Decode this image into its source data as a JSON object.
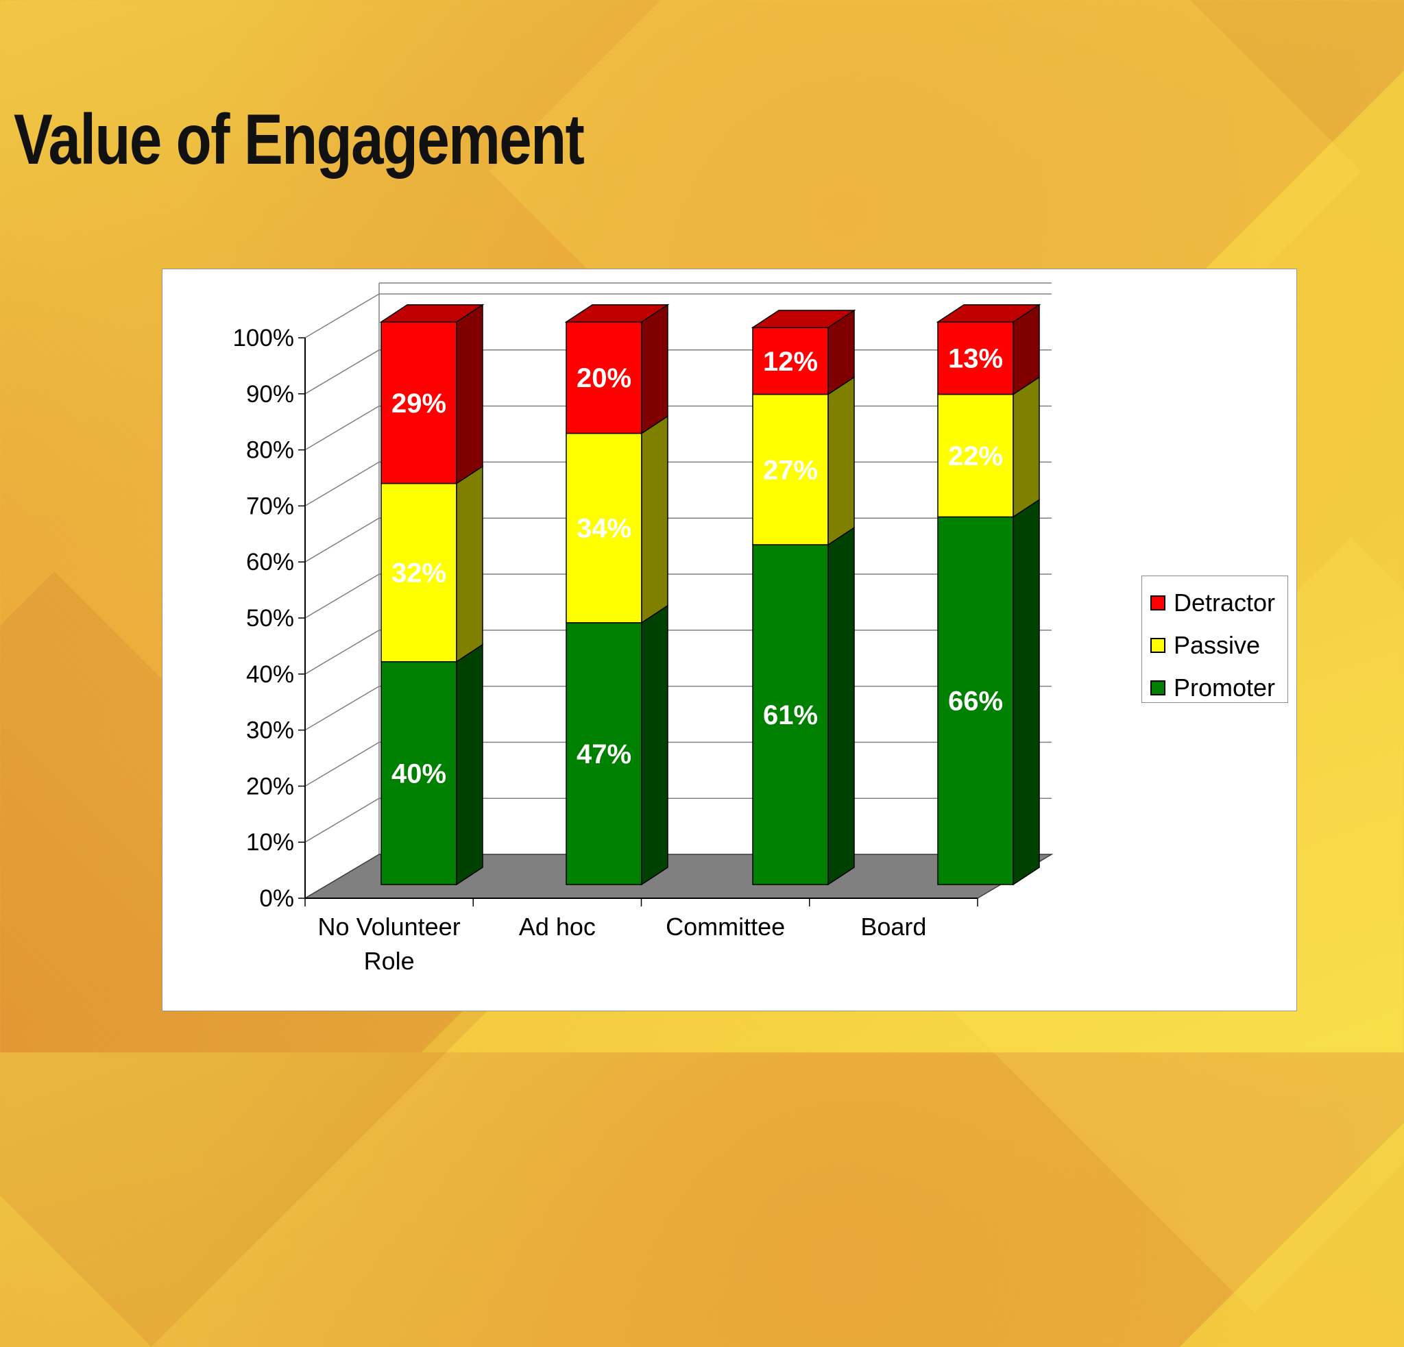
{
  "slide": {
    "title": "Value of Engagement"
  },
  "chart_data": {
    "type": "bar",
    "stacked": true,
    "style": "3d",
    "categories": [
      "No Volunteer Role",
      "Ad hoc",
      "Committee",
      "Board"
    ],
    "category_lines": [
      [
        "No Volunteer",
        "Role"
      ],
      [
        "Ad hoc"
      ],
      [
        "Committee"
      ],
      [
        "Board"
      ]
    ],
    "series": [
      {
        "name": "Promoter",
        "values": [
          40,
          47,
          61,
          66
        ],
        "labels": [
          "40%",
          "47%",
          "61%",
          "66%"
        ],
        "color": "#008000",
        "side": "#004000",
        "top": "#00a000",
        "label_color": "#ffffff"
      },
      {
        "name": "Passive",
        "values": [
          32,
          34,
          27,
          22
        ],
        "labels": [
          "32%",
          "34%",
          "27%",
          "22%"
        ],
        "color": "#ffff00",
        "side": "#808000",
        "top": "#ffff60",
        "label_color": "#000000"
      },
      {
        "name": "Detractor",
        "values": [
          29,
          20,
          12,
          13
        ],
        "labels": [
          "29%",
          "20%",
          "12%",
          "13%"
        ],
        "color": "#ff0000",
        "side": "#800000",
        "top": "#c00000",
        "label_color": "#ffffff"
      }
    ],
    "y_ticks": [
      "0%",
      "10%",
      "20%",
      "30%",
      "40%",
      "50%",
      "60%",
      "70%",
      "80%",
      "90%",
      "100%"
    ],
    "ylim": [
      0,
      100
    ],
    "unit": "%",
    "grid": true,
    "legend_position": "right",
    "floor_color": "#808080",
    "legend": [
      {
        "name": "Detractor",
        "color": "#ff0000"
      },
      {
        "name": "Passive",
        "color": "#ffff00"
      },
      {
        "name": "Promoter",
        "color": "#008000"
      }
    ]
  }
}
